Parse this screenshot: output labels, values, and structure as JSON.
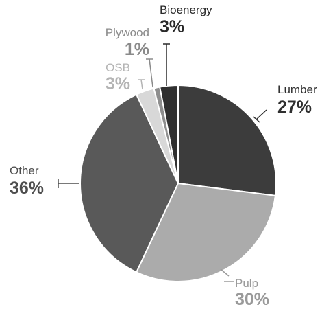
{
  "chart_data": {
    "type": "pie",
    "title": "",
    "slices": [
      {
        "label": "Lumber",
        "value": 27,
        "value_label": "27%",
        "color": "#3c3c3c",
        "label_color": "#2f2f2f"
      },
      {
        "label": "Pulp",
        "value": 30,
        "value_label": "30%",
        "color": "#ababab",
        "label_color": "#9a9a9a"
      },
      {
        "label": "Other",
        "value": 36,
        "value_label": "36%",
        "color": "#595959",
        "label_color": "#4d4d4d"
      },
      {
        "label": "OSB",
        "value": 3,
        "value_label": "3%",
        "color": "#d8d8d8",
        "label_color": "#b4b4b4"
      },
      {
        "label": "Plywood",
        "value": 1,
        "value_label": "1%",
        "color": "#8e8e8e",
        "label_color": "#8a8a8a"
      },
      {
        "label": "Bioenergy",
        "value": 3,
        "value_label": "3%",
        "color": "#303030",
        "label_color": "#2a2a2a"
      }
    ],
    "start_angle_deg": 0,
    "direction": "clockwise",
    "legend": "none",
    "grid": false
  }
}
